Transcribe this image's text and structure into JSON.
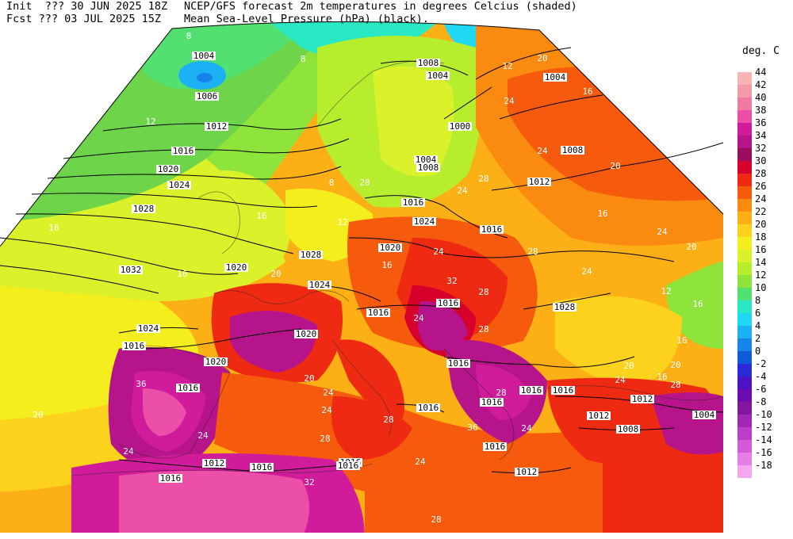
{
  "header": {
    "init_line": "Init  ??? 30 JUN 2025 18Z",
    "fcst_line": "Fcst ??? 03 JUL 2025 15Z",
    "title_line": "NCEP/GFS forecast 2m temperatures in degrees Celcius (shaded)",
    "subtitle_line": "Mean Sea-Level Pressure (hPa) (black)."
  },
  "legend": {
    "unit": "deg. C",
    "entries": [
      {
        "label": "44",
        "color": "#f8b4b4"
      },
      {
        "label": "42",
        "color": "#f59aa8"
      },
      {
        "label": "40",
        "color": "#f07aa0"
      },
      {
        "label": "38",
        "color": "#ec4fa8"
      },
      {
        "label": "36",
        "color": "#d01c9a"
      },
      {
        "label": "34",
        "color": "#b5148a"
      },
      {
        "label": "32",
        "color": "#9c0c5e"
      },
      {
        "label": "30",
        "color": "#d7002c"
      },
      {
        "label": "28",
        "color": "#ef2a12"
      },
      {
        "label": "26",
        "color": "#f65a0c"
      },
      {
        "label": "24",
        "color": "#fb8a10"
      },
      {
        "label": "22",
        "color": "#fdb016"
      },
      {
        "label": "20",
        "color": "#fdd21c"
      },
      {
        "label": "18",
        "color": "#f5ee1f"
      },
      {
        "label": "16",
        "color": "#dbf22b"
      },
      {
        "label": "14",
        "color": "#b6ee2e"
      },
      {
        "label": "12",
        "color": "#8ee43a"
      },
      {
        "label": "10",
        "color": "#52e070"
      },
      {
        "label": "8",
        "color": "#2ae8c4"
      },
      {
        "label": "6",
        "color": "#1ed8f4"
      },
      {
        "label": "4",
        "color": "#1cb0f4"
      },
      {
        "label": "2",
        "color": "#1684e8"
      },
      {
        "label": "0",
        "color": "#0e5ad8"
      },
      {
        "label": "-2",
        "color": "#2a2ad8"
      },
      {
        "label": "-4",
        "color": "#4c12c4"
      },
      {
        "label": "-6",
        "color": "#6a0cb0"
      },
      {
        "label": "-8",
        "color": "#84159e"
      },
      {
        "label": "-10",
        "color": "#a028b4"
      },
      {
        "label": "-12",
        "color": "#bc3ec8"
      },
      {
        "label": "-14",
        "color": "#d45ad8"
      },
      {
        "label": "-16",
        "color": "#e67ee6"
      },
      {
        "label": "-18",
        "color": "#f4a6f0"
      }
    ]
  },
  "isobar_labels": [
    "1004",
    "1006",
    "1008",
    "1004",
    "1004",
    "1008",
    "1012",
    "1000",
    "1016",
    "1004",
    "1008",
    "1012",
    "1020",
    "1024",
    "1016",
    "1028",
    "1032",
    "1024",
    "1016",
    "1020",
    "1028",
    "1020",
    "1024",
    "1016",
    "1028",
    "1024",
    "1016",
    "1020",
    "1020",
    "1016",
    "1016",
    "1016",
    "1016",
    "1016",
    "1016",
    "1016",
    "1016",
    "1012",
    "1012",
    "1004",
    "1008",
    "1016",
    "1016",
    "1012",
    "1016",
    "1012",
    "1016"
  ],
  "temp_labels": [
    "8",
    "8",
    "12",
    "16",
    "20",
    "24",
    "12",
    "16",
    "20",
    "24",
    "16",
    "20",
    "24",
    "12",
    "16",
    "28",
    "24",
    "16",
    "12",
    "8",
    "16",
    "20",
    "24",
    "32",
    "28",
    "24",
    "16",
    "36",
    "24",
    "20",
    "28",
    "24",
    "28",
    "20",
    "24",
    "16",
    "20",
    "24",
    "28",
    "36",
    "32",
    "28",
    "24",
    "20",
    "28",
    "16",
    "24",
    "20",
    "28",
    "24",
    "28",
    "24"
  ]
}
